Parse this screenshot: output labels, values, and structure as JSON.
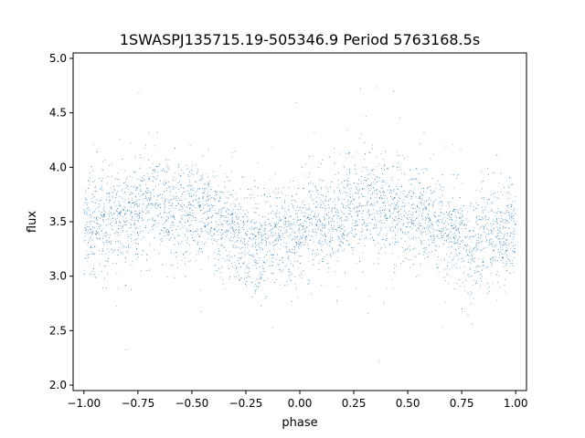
{
  "chart_data": {
    "type": "scatter",
    "title": "1SWASPJ135715.19-505346.9 Period 5763168.5s",
    "xlabel": "phase",
    "ylabel": "flux",
    "xlim": [
      -1.05,
      1.05
    ],
    "ylim": [
      1.95,
      5.05
    ],
    "grid": false,
    "x_ticks": [
      -1.0,
      -0.75,
      -0.5,
      -0.25,
      0.0,
      0.25,
      0.5,
      0.75,
      1.0
    ],
    "x_tick_labels": [
      "−1.00",
      "−0.75",
      "−0.50",
      "−0.25",
      "0.00",
      "0.25",
      "0.50",
      "0.75",
      "1.00"
    ],
    "y_ticks": [
      2.0,
      2.5,
      3.0,
      3.5,
      4.0,
      4.5,
      5.0
    ],
    "y_tick_labels": [
      "2.0",
      "2.5",
      "3.0",
      "3.5",
      "4.0",
      "4.5",
      "5.0"
    ],
    "marker_color": "#1f77b4",
    "series": [
      {
        "phase_mean_flux": [
          [
            -1.0,
            3.45
          ],
          [
            -0.95,
            3.5
          ],
          [
            -0.9,
            3.45
          ],
          [
            -0.85,
            3.5
          ],
          [
            -0.8,
            3.55
          ],
          [
            -0.75,
            3.6
          ],
          [
            -0.7,
            3.7
          ],
          [
            -0.65,
            3.68
          ],
          [
            -0.6,
            3.6
          ],
          [
            -0.55,
            3.62
          ],
          [
            -0.5,
            3.6
          ],
          [
            -0.45,
            3.58
          ],
          [
            -0.4,
            3.55
          ],
          [
            -0.35,
            3.45
          ],
          [
            -0.3,
            3.38
          ],
          [
            -0.25,
            3.35
          ],
          [
            -0.2,
            3.3
          ],
          [
            -0.15,
            3.32
          ],
          [
            -0.1,
            3.4
          ],
          [
            -0.05,
            3.35
          ],
          [
            0.0,
            3.45
          ],
          [
            0.05,
            3.5
          ],
          [
            0.1,
            3.45
          ],
          [
            0.15,
            3.5
          ],
          [
            0.2,
            3.55
          ],
          [
            0.25,
            3.6
          ],
          [
            0.3,
            3.7
          ],
          [
            0.35,
            3.68
          ],
          [
            0.4,
            3.6
          ],
          [
            0.45,
            3.62
          ],
          [
            0.5,
            3.6
          ],
          [
            0.55,
            3.58
          ],
          [
            0.6,
            3.55
          ],
          [
            0.65,
            3.45
          ],
          [
            0.7,
            3.38
          ],
          [
            0.75,
            3.35
          ],
          [
            0.8,
            3.3
          ],
          [
            0.85,
            3.32
          ],
          [
            0.9,
            3.4
          ],
          [
            0.95,
            3.35
          ],
          [
            1.0,
            3.45
          ]
        ],
        "typical_scatter": 0.22,
        "min_flux": 2.05,
        "max_flux": 5.0
      }
    ]
  }
}
